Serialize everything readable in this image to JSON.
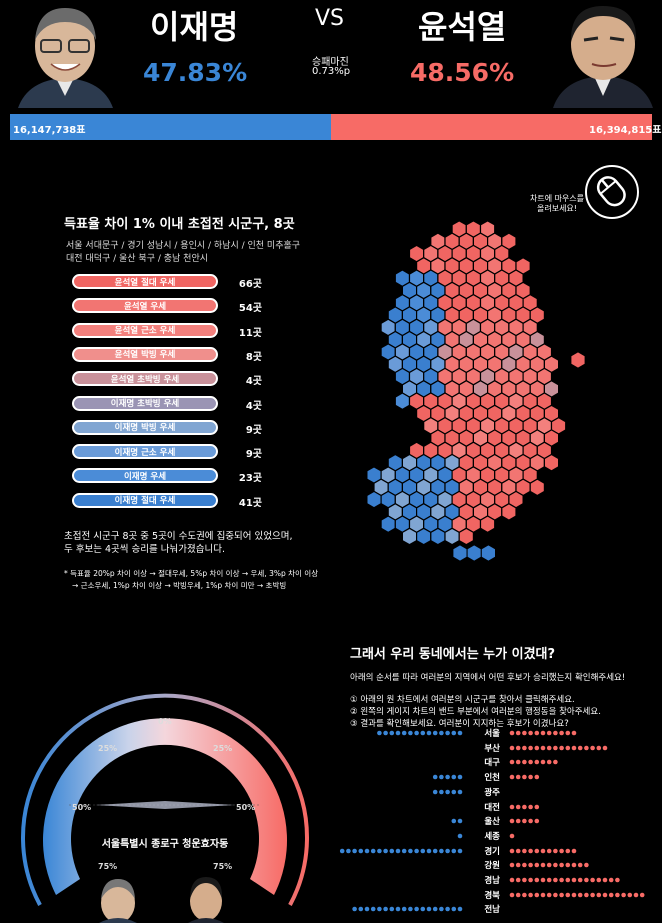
{
  "header": {
    "left_name": "이재명",
    "right_name": "윤석열",
    "vs": "VS",
    "left_pct": "47.83%",
    "right_pct": "48.56%",
    "margin_label": "승패마진",
    "margin_value": "0.73%p",
    "left_votes": "16,147,738표",
    "right_votes": "16,394,815표",
    "colors": {
      "blue": "#3a86d6",
      "red": "#f76b66"
    }
  },
  "legend": {
    "title": "득표율 차이 1% 이내 초접전 시군구, 8곳",
    "places_line1": "서울 서대문구 / 경기 성남시 / 용인시 / 하남시 / 인천 미추홀구",
    "places_line2": "대전 대덕구 / 울산 북구 / 충남 천안시",
    "hint": "차트에 마우스를\n올려보세요!",
    "items": [
      {
        "label": "윤석열 절대 우세",
        "count": "66곳",
        "color": "#f06562"
      },
      {
        "label": "윤석열 우세",
        "count": "54곳",
        "color": "#f27572"
      },
      {
        "label": "윤석열 근소 우세",
        "count": "11곳",
        "color": "#f3807d"
      },
      {
        "label": "윤석열 박빙 우세",
        "count": "8곳",
        "color": "#f08f8c"
      },
      {
        "label": "윤석열 초박빙 우세",
        "count": "4곳",
        "color": "#c9919a"
      },
      {
        "label": "이재명 초박빙 우세",
        "count": "4곳",
        "color": "#9a94b4"
      },
      {
        "label": "이재명 박빙 우세",
        "count": "9곳",
        "color": "#80a5d2"
      },
      {
        "label": "이재명 근소 우세",
        "count": "9곳",
        "color": "#6a9bd8"
      },
      {
        "label": "이재명 우세",
        "count": "23곳",
        "color": "#4b8cd7"
      },
      {
        "label": "이재명 절대 우세",
        "count": "41곳",
        "color": "#3a7fcf"
      }
    ],
    "summary_line1": "초접전 시군구 8곳 중 5곳이 수도권에 집중되어 있었으며,",
    "summary_line2": "두 후보는 4곳씩 승리를 나눠가졌습니다.",
    "footnote_line1": "* 득표율 20%p 차이 이상 → 절대우세, 5%p 차이 이상 → 우세, 3%p 차이 이상",
    "footnote_line2": "→ 근소우세, 1%p 차이 이상 → 박빙우세, 1%p 차이 미만 → 초박빙"
  },
  "gauge": {
    "ticks": [
      "0%",
      "25%",
      "25%",
      "50%",
      "50%",
      "75%",
      "75%"
    ],
    "location": "서울특별시 종로구 청운효자동"
  },
  "right_panel": {
    "title": "그래서 우리 동네에서는 누가 이겼대?",
    "intro": "아래의 순서를 따라 여러분의 지역에서 어떤 후보가 승리했는지 확인해주세요!",
    "steps": [
      "① 아래의 원 차트에서 여러분의 시군구를 찾아서 클릭해주세요.",
      "② 왼쪽의 게이지 차트의 밴드 부분에서 여러분의 행정동을 찾아주세요.",
      "③ 결과를 확인해보세요. 여러분이 지지하는 후보가 이겼나요?"
    ]
  },
  "chart_data": {
    "type": "bar",
    "title": "",
    "categories": [
      "서울",
      "부산",
      "대구",
      "인천",
      "광주",
      "대전",
      "울산",
      "세종",
      "경기",
      "강원",
      "경남",
      "경북",
      "전남"
    ],
    "series": [
      {
        "name": "이재명",
        "values": [
          14,
          0,
          0,
          5,
          5,
          0,
          2,
          1,
          20,
          0,
          0,
          0,
          18
        ],
        "color": "#3a86d6"
      },
      {
        "name": "윤석열",
        "values": [
          11,
          16,
          8,
          5,
          0,
          5,
          5,
          1,
          11,
          13,
          18,
          22,
          0
        ],
        "color": "#f76b66"
      }
    ]
  }
}
